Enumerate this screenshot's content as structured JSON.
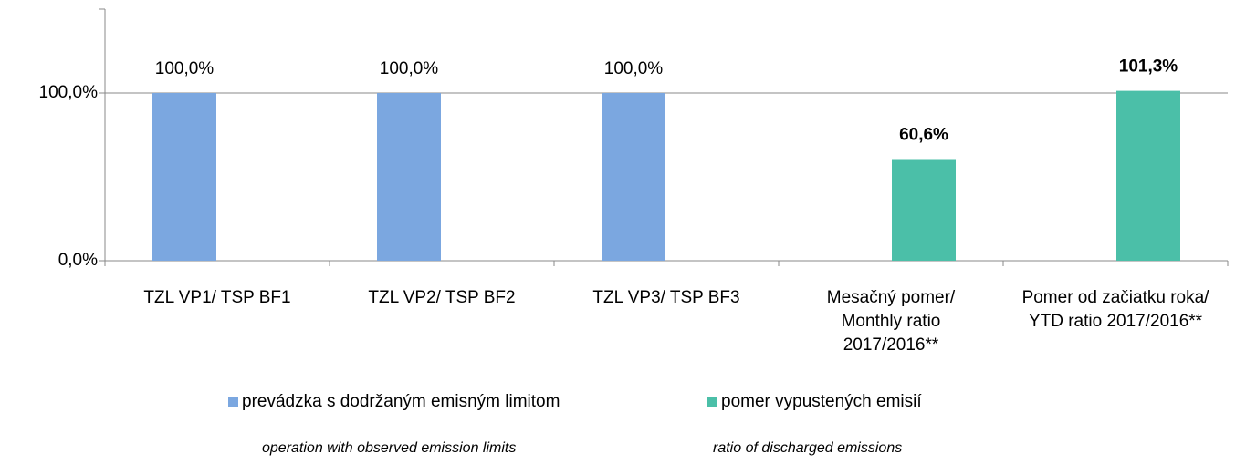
{
  "chart_data": {
    "type": "bar",
    "categories": [
      "TZL VP1/ TSP BF1",
      "TZL VP2/ TSP BF2",
      "TZL VP3/ TSP BF3",
      "Mesačný pomer/ Monthly ratio 2017/2016**",
      "Pomer  od začiatku roka/ YTD ratio 2017/2016**"
    ],
    "series": [
      {
        "name": "prevádzka s dodržaným emisným limitom",
        "color": "#7ba7e0",
        "values": [
          100,
          100,
          100,
          null,
          null
        ],
        "value_labels": [
          "100,0%",
          "100,0%",
          "100,0%",
          null,
          null
        ]
      },
      {
        "name": "pomer vypustených emisií",
        "color": "#4bbfa8",
        "values": [
          null,
          null,
          null,
          60.6,
          101.3
        ],
        "value_labels": [
          null,
          null,
          null,
          "60,6%",
          "101,3%"
        ]
      }
    ],
    "legend_notes": [
      "operation with observed emission limits",
      "ratio of discharged emissions"
    ],
    "ylim": [
      0,
      150
    ],
    "yticks": [
      {
        "value": 0,
        "label": "0,0%"
      },
      {
        "value": 100,
        "label": "100,0%"
      }
    ],
    "grid": true,
    "legend": "bottom"
  }
}
